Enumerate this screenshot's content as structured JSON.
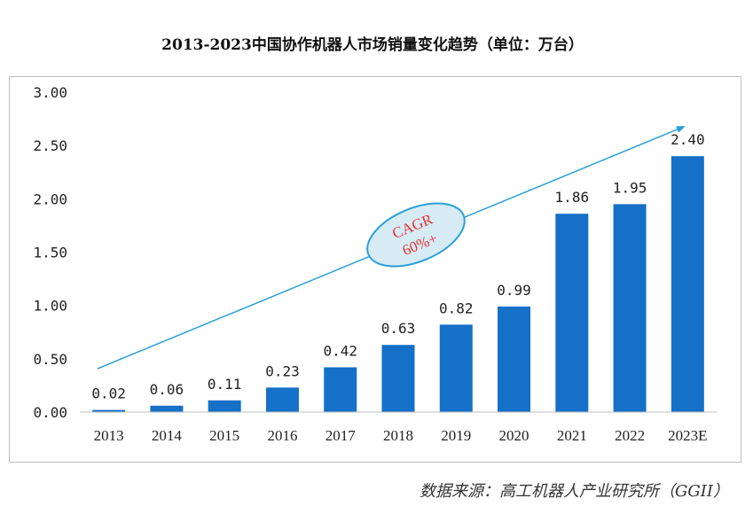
{
  "chart_data": {
    "type": "bar",
    "title": "2013-2023中国协作机器人市场销量变化趋势（单位：万台）",
    "categories": [
      "2013",
      "2014",
      "2015",
      "2016",
      "2017",
      "2018",
      "2019",
      "2020",
      "2021",
      "2022",
      "2023E"
    ],
    "values": [
      0.02,
      0.06,
      0.11,
      0.23,
      0.42,
      0.63,
      0.82,
      0.99,
      1.86,
      1.95,
      2.4
    ],
    "data_labels": [
      "0.02",
      "0.06",
      "0.11",
      "0.23",
      "0.42",
      "0.63",
      "0.82",
      "0.99",
      "1.86",
      "1.95",
      "2.40"
    ],
    "y_ticks": [
      "0.00",
      "0.50",
      "1.00",
      "1.50",
      "2.00",
      "2.50",
      "3.00"
    ],
    "ylim": [
      0,
      3
    ],
    "grid": false,
    "annotation": {
      "line1": "CAGR",
      "line2": "60%+"
    },
    "colors": {
      "bar": "#1570c7",
      "arrow": "#2aa0d8",
      "ellipse_fill": "#d7ebf5",
      "ellipse_stroke": "#2aa0d8",
      "annotation_text": "#e53030"
    }
  },
  "source": "数据来源：高工机器人产业研究所（GGII）"
}
